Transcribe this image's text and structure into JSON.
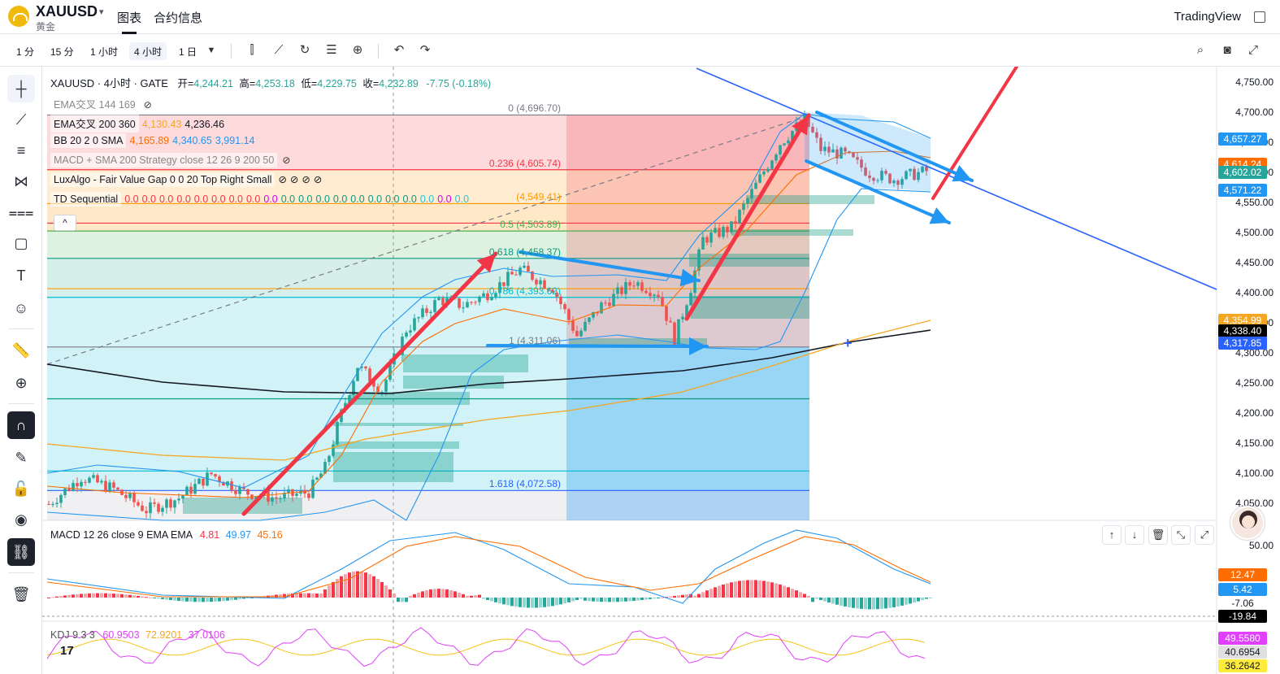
{
  "header": {
    "symbol": "XAUUSD",
    "symbol_sub": "黄金",
    "tabs": [
      {
        "label": "图表"
      },
      {
        "label": "合约信息"
      }
    ],
    "brand": "TradingView"
  },
  "toolbar": {
    "timeframes": [
      {
        "label": "1 分"
      },
      {
        "label": "15 分"
      },
      {
        "label": "1 小时"
      },
      {
        "label": "4 小时"
      },
      {
        "label": "1 日"
      }
    ],
    "active_timeframe": "4 小时"
  },
  "legend": {
    "title": "XAUUSD · 4小时 · GATE",
    "ohlc": {
      "open_label": "开=",
      "open": "4,244.21",
      "high_label": "高=",
      "high": "4,253.18",
      "low_label": "低=",
      "low": "4,229.75",
      "close_label": "收=",
      "close": "4,232.89",
      "change": "-7.75 (-0.18%)"
    },
    "indicators": [
      {
        "name": "EMA交叉 144 169",
        "values": []
      },
      {
        "name": "EMA交叉 200 360",
        "values": [
          "4,130.43",
          "4,236.46"
        ]
      },
      {
        "name": "BB 20 2 0 SMA",
        "values": [
          "4,165.89",
          "4,340.65",
          "3,991.14"
        ]
      },
      {
        "name": "MACD + SMA 200 Strategy close 12 26 9 200 50",
        "values": []
      },
      {
        "name": "LuxAlgo - Fair Value Gap 0 0 20 Top Right Small",
        "values": [
          "⊘",
          "⊘",
          "⊘",
          "⊘"
        ]
      },
      {
        "name": "TD Sequential",
        "values": [
          "0.0",
          "0.0",
          "0.0",
          "0.0",
          "0.0",
          "0.0",
          "0.0",
          "0.0",
          "0.0",
          "0.0",
          "0.0",
          "0.0",
          "0.0",
          "0.0",
          "0.0",
          "0.0",
          "0.0",
          "0.0",
          "0.0",
          "0.0"
        ]
      }
    ]
  },
  "fib_levels": [
    {
      "label": "0 (4,696.70)",
      "price": 4696.7,
      "color": "#787b86"
    },
    {
      "label": "0.236 (4,605.74)",
      "price": 4605.74,
      "color": "#f23645"
    },
    {
      "label": "(4,549.41)",
      "price": 4549.41,
      "color": "#ff9800"
    },
    {
      "label": "0.5 (4,503.89)",
      "price": 4503.89,
      "color": "#4caf50"
    },
    {
      "label": "0.618 (4,458.37)",
      "price": 4458.37,
      "color": "#089981"
    },
    {
      "label": "0.786 (4,393.62)",
      "price": 4393.62,
      "color": "#00bcd4"
    },
    {
      "label": "1 (4,311.06)",
      "price": 4311.06,
      "color": "#787b86"
    },
    {
      "label": "1.618 (4,072.58)",
      "price": 4072.58,
      "color": "#2962ff"
    }
  ],
  "price_scale": [
    "4,750.00",
    "4,700.00",
    "4,650.00",
    "4,600.00",
    "4,550.00",
    "4,500.00",
    "4,450.00",
    "4,400.00",
    "4,350.00",
    "4,300.00",
    "4,250.00",
    "4,200.00",
    "4,150.00",
    "4,100.00",
    "4,050.00"
  ],
  "price_tags": [
    {
      "value": "4,657.27",
      "price": 4657.27,
      "color": "#2196f3"
    },
    {
      "value": "4,614.24",
      "price": 4614.24,
      "color": "#ff6d00"
    },
    {
      "value": "4,602.02",
      "price": 4602.02,
      "color": "#26a69a"
    },
    {
      "value": "4,571.22",
      "price": 4571.22,
      "color": "#2196f3"
    },
    {
      "value": "4,354.99",
      "price": 4354.99,
      "color": "#f5a623"
    },
    {
      "value": "4,338.40",
      "price": 4338.4,
      "color": "#000000"
    },
    {
      "value": "4,317.85",
      "price": 4317.85,
      "color": "#2962ff"
    }
  ],
  "macd_pane": {
    "title": "MACD 12 26 close 9 EMA EMA",
    "values": [
      "4.81",
      "49.97",
      "45.16"
    ],
    "scale_label": "50.00",
    "tags": [
      {
        "value": "12.47",
        "color": "#ff6d00"
      },
      {
        "value": "5.42",
        "color": "#2196f3"
      },
      {
        "value": "-7.06",
        "color": "#ffffff"
      },
      {
        "value": "-19.84",
        "color": "#000000"
      }
    ]
  },
  "kdj_pane": {
    "title": "KDJ 9 3 3",
    "values": [
      "60.9503",
      "72.9201",
      "37.0106"
    ],
    "tags": [
      {
        "value": "49.5580",
        "color": "#e040fb"
      },
      {
        "value": "40.6954",
        "color": "#e0e0e0"
      },
      {
        "value": "36.2642",
        "color": "#ffeb3b"
      }
    ]
  },
  "colors": {
    "up": "#26a69a",
    "down": "#ef5350",
    "arrow_red": "#f23645",
    "arrow_blue": "#2196f3"
  }
}
